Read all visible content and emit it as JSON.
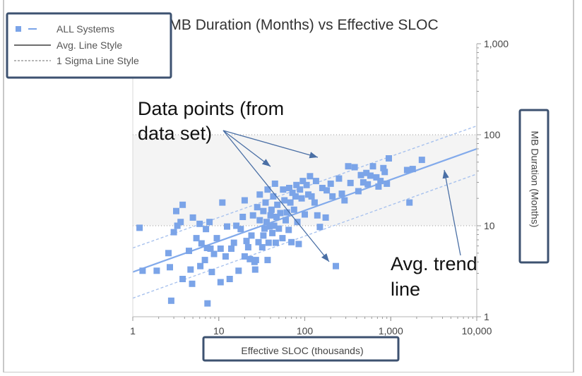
{
  "chart_data": {
    "type": "scatter",
    "title": "MB Duration (Months) vs Effective SLOC",
    "xlabel": "Effective SLOC (thousands)",
    "ylabel": "MB Duration (Months)",
    "x_scale": "log",
    "y_scale": "log",
    "xlim": [
      1,
      10000
    ],
    "ylim": [
      1,
      1000
    ],
    "x_ticks": [
      "1",
      "10",
      "100",
      "1,000",
      "10,000"
    ],
    "y_ticks": [
      "1",
      "10",
      "100",
      "1,000"
    ],
    "grid": "dotted horizontal at 10 and 100",
    "legend_position": "top-left",
    "legend": [
      {
        "label": "ALL Systems",
        "style": "marker"
      },
      {
        "label": "Avg. Line Style",
        "style": "solid"
      },
      {
        "label": "1 Sigma Line Style",
        "style": "dashed"
      }
    ],
    "colors": {
      "points": "#7ba4e8",
      "trend": "#82aaeb",
      "sigma": "#a8c2ee",
      "highlight_box": "#3d5270",
      "arrow": "#4a6fa5"
    },
    "trend_line": {
      "x": [
        1,
        10000
      ],
      "y": [
        3.1,
        70
      ]
    },
    "sigma_upper": {
      "x": [
        1,
        10000
      ],
      "y": [
        5.7,
        125
      ]
    },
    "sigma_lower": {
      "x": [
        1,
        10000
      ],
      "y": [
        1.6,
        37
      ]
    },
    "series": [
      {
        "name": "ALL Systems",
        "points": [
          [
            1.2,
            9.5
          ],
          [
            1.3,
            3.2
          ],
          [
            1.9,
            3.2
          ],
          [
            2.6,
            5.0
          ],
          [
            2.7,
            3.5
          ],
          [
            3.0,
            8.5
          ],
          [
            2.8,
            1.5
          ],
          [
            3.3,
            10.0
          ],
          [
            3.2,
            14.5
          ],
          [
            3.6,
            11.0
          ],
          [
            3.8,
            17.0
          ],
          [
            4.5,
            5.3
          ],
          [
            4.7,
            3.3
          ],
          [
            3.8,
            2.6
          ],
          [
            4.9,
            2.3
          ],
          [
            5.0,
            12.3
          ],
          [
            5.5,
            7.3
          ],
          [
            6.0,
            10.5
          ],
          [
            6.1,
            3.6
          ],
          [
            6.3,
            6.4
          ],
          [
            6.9,
            4.2
          ],
          [
            7.4,
            1.4
          ],
          [
            7.3,
            5.7
          ],
          [
            8.0,
            5.6
          ],
          [
            7.1,
            9.2
          ],
          [
            7.8,
            11.0
          ],
          [
            8.3,
            3.1
          ],
          [
            8.8,
            4.9
          ],
          [
            9.5,
            7.3
          ],
          [
            10.5,
            5.6
          ],
          [
            11.0,
            18.0
          ],
          [
            10.5,
            2.4
          ],
          [
            12.0,
            4.6
          ],
          [
            12.5,
            9.8
          ],
          [
            13.4,
            2.6
          ],
          [
            14.0,
            5.6
          ],
          [
            15.0,
            6.5
          ],
          [
            16.0,
            10.0
          ],
          [
            17.0,
            3.2
          ],
          [
            18.0,
            9.2
          ],
          [
            19.0,
            12.5
          ],
          [
            20.0,
            4.6
          ],
          [
            20.0,
            19.0
          ],
          [
            21.0,
            6.8
          ],
          [
            22.0,
            5.8
          ],
          [
            23.0,
            4.3
          ],
          [
            24.0,
            7.8
          ],
          [
            25.0,
            13.0
          ],
          [
            26.0,
            4.0
          ],
          [
            26.5,
            3.3
          ],
          [
            27.0,
            4.2
          ],
          [
            28.0,
            16.0
          ],
          [
            29.0,
            6.6
          ],
          [
            30.0,
            11.5
          ],
          [
            30.0,
            22.0
          ],
          [
            32.0,
            5.8
          ],
          [
            33.0,
            7.8
          ],
          [
            33.0,
            14.5
          ],
          [
            34.0,
            9.3
          ],
          [
            35.0,
            18.0
          ],
          [
            36.0,
            11.0
          ],
          [
            37.0,
            25.0
          ],
          [
            37.0,
            4.2
          ],
          [
            38.0,
            6.5
          ],
          [
            39.0,
            9.8
          ],
          [
            40.0,
            13.0
          ],
          [
            41.0,
            15.0
          ],
          [
            42.0,
            8.3
          ],
          [
            43.0,
            21.0
          ],
          [
            44.0,
            10.0
          ],
          [
            45.0,
            29.0
          ],
          [
            46.0,
            6.5
          ],
          [
            47.0,
            12.5
          ],
          [
            48.0,
            17.0
          ],
          [
            50.0,
            9.3
          ],
          [
            52.0,
            13.8
          ],
          [
            55.0,
            7.3
          ],
          [
            56.0,
            25.0
          ],
          [
            58.0,
            19.0
          ],
          [
            60.0,
            11.5
          ],
          [
            62.0,
            14.0
          ],
          [
            65.0,
            9.0
          ],
          [
            66.0,
            26.0
          ],
          [
            68.0,
            18.0
          ],
          [
            70.0,
            6.6
          ],
          [
            72.0,
            23.0
          ],
          [
            75.0,
            15.0
          ],
          [
            78.0,
            21.0
          ],
          [
            80.0,
            28.0
          ],
          [
            82.0,
            11.0
          ],
          [
            85.0,
            6.3
          ],
          [
            88.0,
            25.0
          ],
          [
            92.0,
            20.0
          ],
          [
            95.0,
            31.0
          ],
          [
            100.0,
            13.3
          ],
          [
            105.0,
            28.0
          ],
          [
            110.0,
            22.0
          ],
          [
            115.0,
            35.0
          ],
          [
            120.0,
            21.0
          ],
          [
            130.0,
            18.0
          ],
          [
            135.0,
            31.0
          ],
          [
            140.0,
            13.0
          ],
          [
            150.0,
            9.7
          ],
          [
            160.0,
            26.0
          ],
          [
            175.0,
            12.3
          ],
          [
            180.0,
            24.5
          ],
          [
            200.0,
            29.0
          ],
          [
            210.0,
            21.0
          ],
          [
            230.0,
            3.6
          ],
          [
            250.0,
            33.0
          ],
          [
            270.0,
            22.5
          ],
          [
            290.0,
            19.0
          ],
          [
            320.0,
            45.0
          ],
          [
            340.0,
            29.5
          ],
          [
            380.0,
            44.0
          ],
          [
            420.0,
            24.0
          ],
          [
            450.0,
            36.0
          ],
          [
            480.0,
            30.0
          ],
          [
            520.0,
            38.0
          ],
          [
            540.0,
            28.5
          ],
          [
            580.0,
            35.5
          ],
          [
            620.0,
            45.0
          ],
          [
            680.0,
            34.0
          ],
          [
            720.0,
            27.0
          ],
          [
            760.0,
            31.0
          ],
          [
            820.0,
            43.0
          ],
          [
            850.0,
            39.0
          ],
          [
            900.0,
            29.0
          ],
          [
            950.0,
            55.0
          ],
          [
            1550.0,
            41.0
          ],
          [
            1650.0,
            18.0
          ],
          [
            1800.0,
            42.0
          ],
          [
            2300.0,
            53.0
          ]
        ]
      }
    ],
    "annotations": [
      {
        "text": [
          "Data points (from",
          "data set)"
        ]
      },
      {
        "text": [
          "Avg. trend",
          "line"
        ]
      }
    ]
  }
}
